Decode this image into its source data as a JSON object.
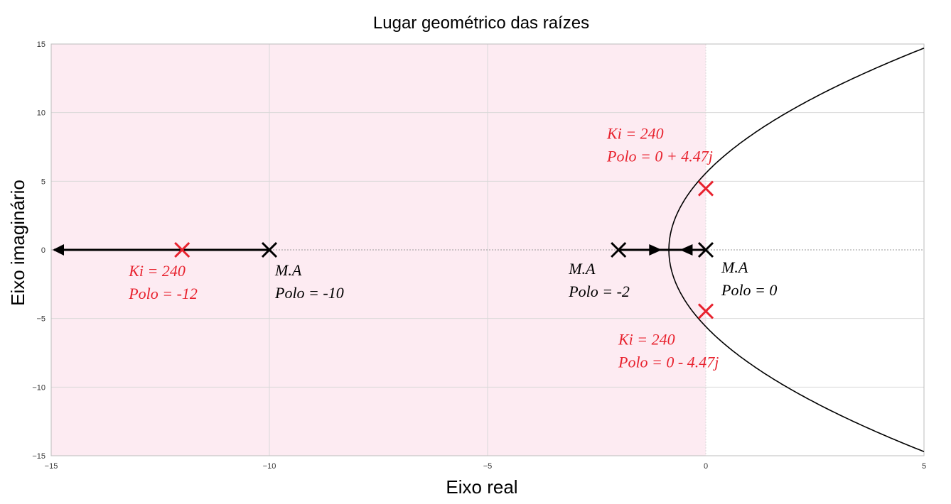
{
  "chart_data": {
    "type": "scatter",
    "title": "Lugar geométrico das raízes",
    "xlabel": "Eixo real",
    "ylabel": "Eixo imaginário",
    "xlim": [
      -15,
      5
    ],
    "ylim": [
      -15,
      15
    ],
    "xticks": [
      -15,
      -10,
      -5,
      0,
      5
    ],
    "yticks": [
      -15,
      -10,
      -5,
      0,
      5,
      10,
      15
    ],
    "grid": true,
    "stable_region": {
      "x_from": -15,
      "x_to": 0,
      "color": "#fdebf2"
    },
    "open_loop_poles": [
      {
        "x": -10,
        "y": 0,
        "label1": "M.A",
        "label2": "Polo = -10"
      },
      {
        "x": -2,
        "y": 0,
        "label1": "M.A",
        "label2": "Polo = -2"
      },
      {
        "x": 0,
        "y": 0,
        "label1": "M.A",
        "label2": "Polo = 0"
      }
    ],
    "closed_loop_poles": [
      {
        "x": -12,
        "y": 0,
        "label1": "Ki = 240",
        "label2": "Polo = -12"
      },
      {
        "x": 0,
        "y": 4.47,
        "label1": "Ki = 240",
        "label2": "Polo = 0 + 4.47j"
      },
      {
        "x": 0,
        "y": -4.47,
        "label1": "Ki = 240",
        "label2": "Polo = 0 - 4.47j"
      }
    ],
    "breakaway_point": {
      "x": -0.845,
      "y": 0
    },
    "branch_end": {
      "x": 5,
      "y": 14.7
    },
    "colors": {
      "open_loop": "#000000",
      "closed_loop": "#e8222e",
      "locus": "#000000",
      "grid": "#d9d9d9"
    }
  }
}
